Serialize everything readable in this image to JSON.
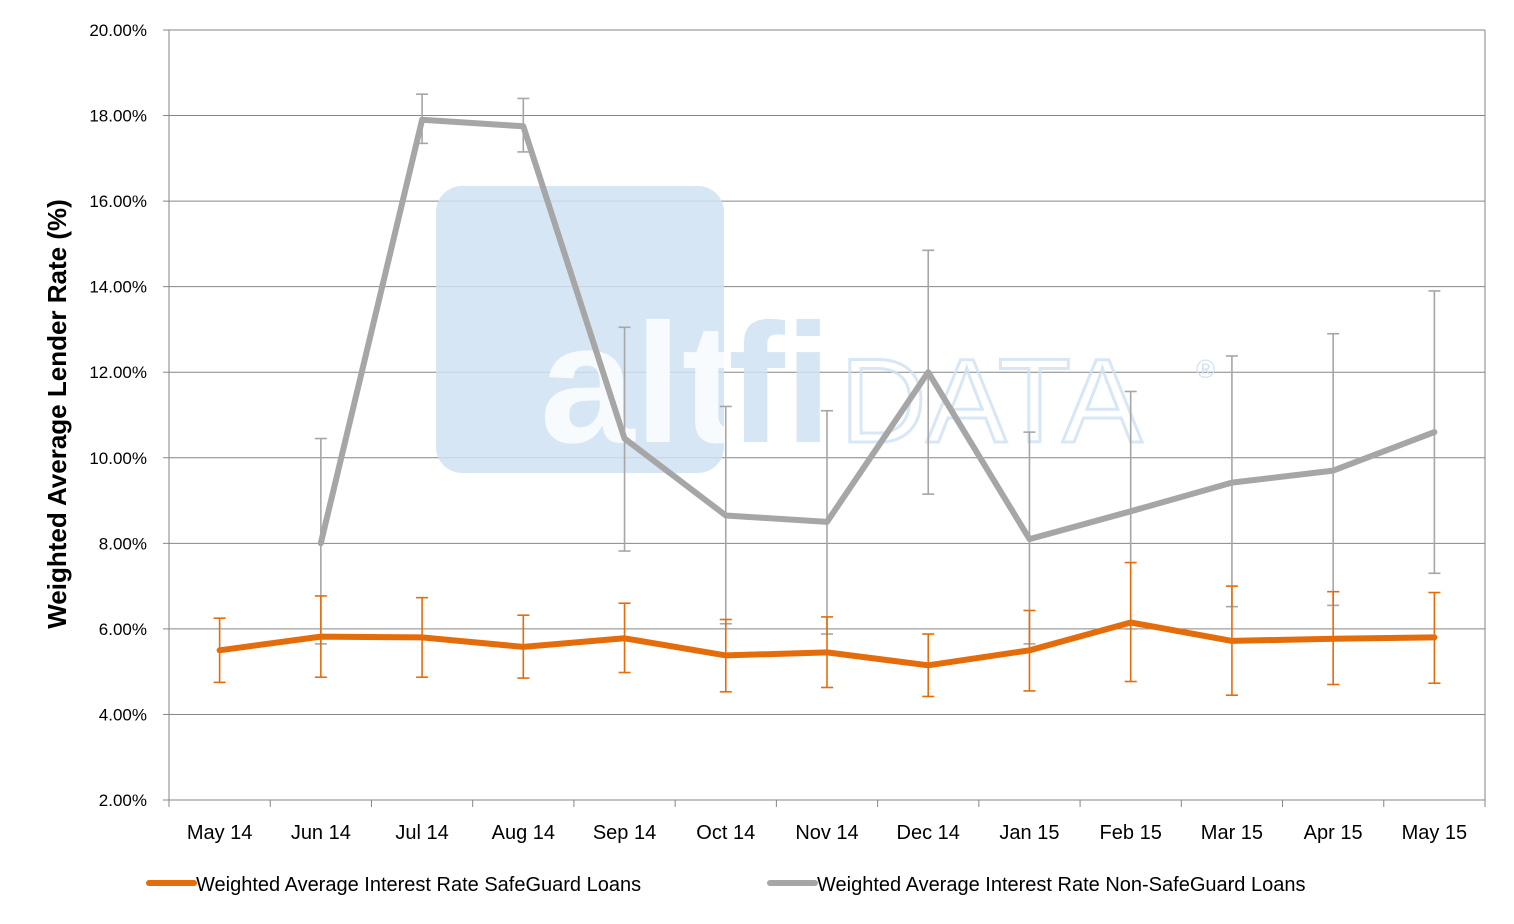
{
  "chart_data": {
    "type": "line",
    "title": "",
    "xlabel": "",
    "ylabel": "Weighted Average Lender Rate (%)",
    "ylim": [
      2,
      20
    ],
    "y_ticks": [
      "2.00%",
      "4.00%",
      "6.00%",
      "8.00%",
      "10.00%",
      "12.00%",
      "14.00%",
      "16.00%",
      "18.00%",
      "20.00%"
    ],
    "grid": true,
    "legend_position": "bottom",
    "categories": [
      "May 14",
      "Jun 14",
      "Jul 14",
      "Aug 14",
      "Sep 14",
      "Oct 14",
      "Nov 14",
      "Dec 14",
      "Jan 15",
      "Feb 15",
      "Mar 15",
      "Apr 15",
      "May 15"
    ],
    "series": [
      {
        "name": "Weighted Average Interest Rate SafeGuard Loans",
        "color": "#e46c0a",
        "values": [
          5.5,
          5.82,
          5.8,
          5.58,
          5.78,
          5.38,
          5.45,
          5.15,
          5.5,
          6.15,
          5.72,
          5.77,
          5.8
        ],
        "error_low": [
          4.75,
          4.87,
          4.87,
          4.85,
          4.98,
          4.53,
          4.63,
          4.42,
          4.55,
          4.77,
          4.45,
          4.7,
          4.73
        ],
        "error_high": [
          6.25,
          6.77,
          6.73,
          6.32,
          6.6,
          6.22,
          6.28,
          5.88,
          6.43,
          7.55,
          7.0,
          6.87,
          6.85
        ]
      },
      {
        "name": "Weighted Average Interest Rate Non-SafeGuard Loans",
        "color": "#a6a6a6",
        "values": [
          null,
          8.0,
          17.9,
          17.75,
          10.45,
          8.65,
          8.5,
          12.0,
          8.1,
          8.75,
          9.42,
          9.7,
          10.6
        ],
        "error_low": [
          null,
          5.65,
          17.35,
          17.15,
          7.82,
          6.12,
          5.88,
          9.15,
          5.65,
          6.0,
          6.52,
          6.55,
          7.3
        ],
        "error_high": [
          null,
          10.45,
          18.5,
          18.4,
          13.05,
          11.2,
          11.1,
          14.85,
          10.6,
          11.55,
          12.38,
          12.9,
          13.9
        ]
      }
    ]
  },
  "watermark": {
    "text_alt": "alt",
    "text_fi": "fi",
    "text_data": "DATA",
    "text_mark": "®",
    "color_box": "#cfe2f3",
    "color_text": "#e9f1f9"
  }
}
